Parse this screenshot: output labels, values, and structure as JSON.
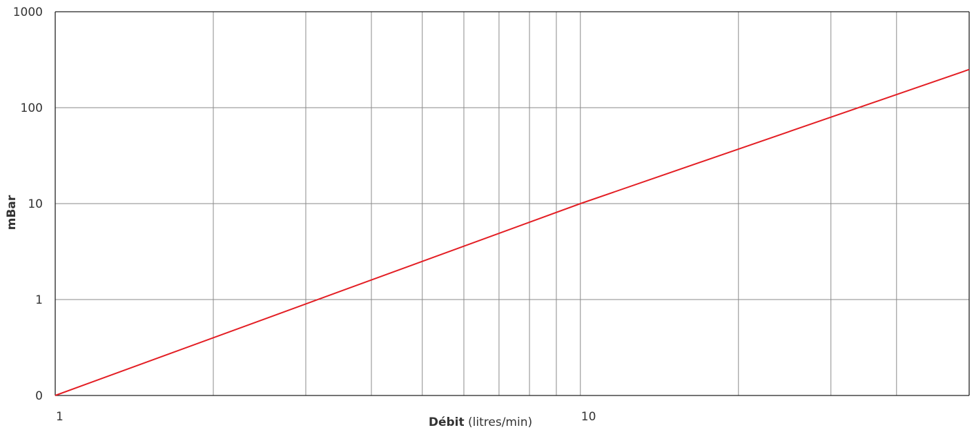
{
  "chart_data": {
    "type": "line",
    "title": "",
    "xlabel_bold": "Débit",
    "xlabel_rest": " (litres/min)",
    "ylabel": "mBar",
    "x_scale": "log",
    "y_scale": "log",
    "xlim": [
      1,
      55
    ],
    "ylim": [
      0.1,
      1000
    ],
    "x_ticks": [
      {
        "value": 1,
        "label": "1"
      },
      {
        "value": 10,
        "label": "10"
      }
    ],
    "x_minor_gridlines": [
      2,
      3,
      4,
      5,
      6,
      7,
      8,
      9,
      20,
      30,
      40
    ],
    "y_ticks": [
      {
        "value": 0.1,
        "label": "0"
      },
      {
        "value": 1,
        "label": "1"
      },
      {
        "value": 10,
        "label": "10"
      },
      {
        "value": 100,
        "label": "100"
      },
      {
        "value": 1000,
        "label": "1000"
      }
    ],
    "grid": true,
    "series": [
      {
        "color": "#e31e24",
        "points": [
          {
            "x": 1,
            "y": 0.1
          },
          {
            "x": 10,
            "y": 10
          },
          {
            "x": 55,
            "y": 250
          }
        ]
      }
    ]
  }
}
